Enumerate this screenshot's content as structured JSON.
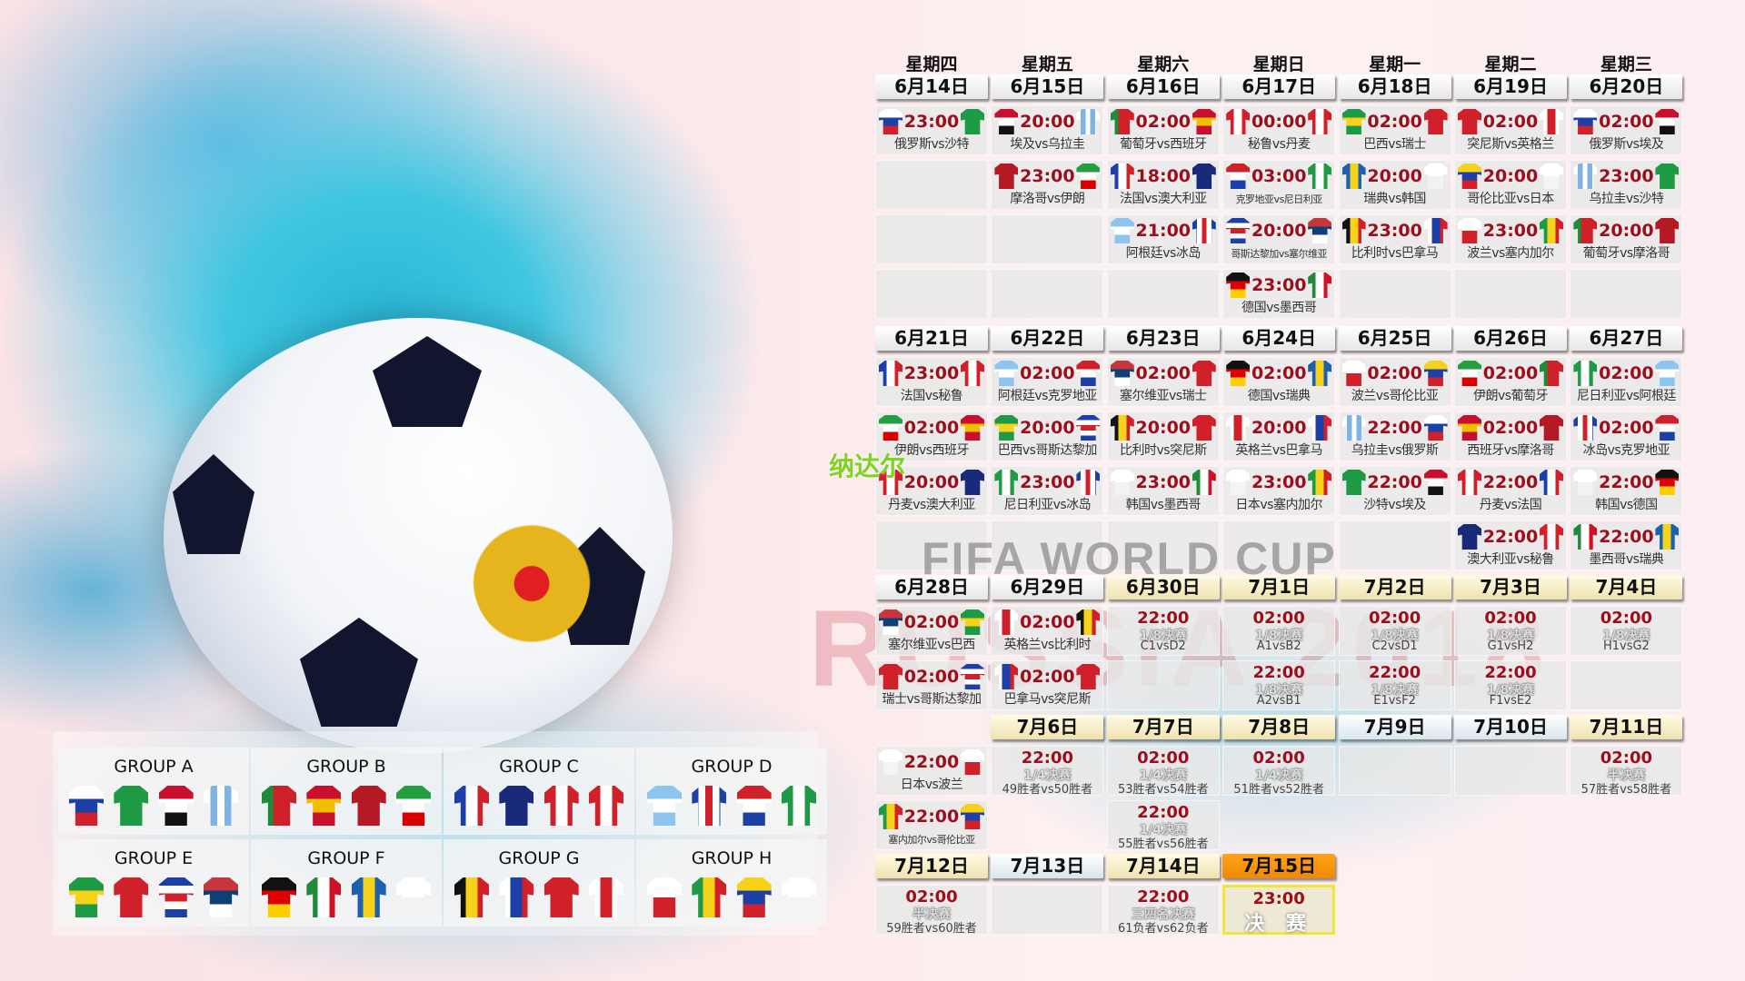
{
  "watermarks": {
    "fifa": "FIFA WORLD CUP",
    "russia": "RUSSIA 2018",
    "name": "纳达尔"
  },
  "weekdays": [
    "星期四",
    "星期五",
    "星期六",
    "星期日",
    "星期一",
    "星期二",
    "星期三"
  ],
  "jerseys": {
    "rus": {
      "dir": "h",
      "colors": [
        "#ffffff",
        "#1d3fa8",
        "#d0202a"
      ]
    },
    "ksa": {
      "dir": "h",
      "colors": [
        "#1f9a44",
        "#1f9a44"
      ]
    },
    "egy": {
      "dir": "h",
      "colors": [
        "#c8102e",
        "#ffffff",
        "#111111"
      ]
    },
    "uru": {
      "dir": "v",
      "colors": [
        "#ffffff",
        "#7fb3e3",
        "#ffffff",
        "#7fb3e3",
        "#ffffff"
      ]
    },
    "mar": {
      "dir": "h",
      "colors": [
        "#b51a24",
        "#b51a24"
      ]
    },
    "irn": {
      "dir": "h",
      "colors": [
        "#239f40",
        "#ffffff",
        "#da0000"
      ]
    },
    "por": {
      "dir": "v",
      "colors": [
        "#1f8a3a",
        "#d0202a",
        "#d0202a"
      ]
    },
    "esp": {
      "dir": "h",
      "colors": [
        "#c8102e",
        "#f1bf00",
        "#c8102e"
      ]
    },
    "fra": {
      "dir": "v",
      "colors": [
        "#1d3fa8",
        "#ffffff",
        "#d0202a"
      ]
    },
    "aus": {
      "dir": "h",
      "colors": [
        "#1a2a7a",
        "#1a2a7a"
      ]
    },
    "arg": {
      "dir": "h",
      "colors": [
        "#8ec5ee",
        "#ffffff",
        "#8ec5ee"
      ]
    },
    "isl": {
      "dir": "v",
      "colors": [
        "#1d3fa8",
        "#ffffff",
        "#d0202a",
        "#ffffff",
        "#1d3fa8"
      ]
    },
    "per": {
      "dir": "v",
      "colors": [
        "#d0202a",
        "#ffffff",
        "#d0202a"
      ]
    },
    "den": {
      "dir": "v",
      "colors": [
        "#d0202a",
        "#ffffff",
        "#d0202a"
      ]
    },
    "cro": {
      "dir": "h",
      "colors": [
        "#d0202a",
        "#ffffff",
        "#1d3fa8"
      ]
    },
    "nga": {
      "dir": "v",
      "colors": [
        "#1f9a44",
        "#ffffff",
        "#1f9a44"
      ]
    },
    "crc": {
      "dir": "h",
      "colors": [
        "#1d3fa8",
        "#ffffff",
        "#d0202a",
        "#ffffff",
        "#1d3fa8"
      ]
    },
    "srb": {
      "dir": "h",
      "colors": [
        "#c6363c",
        "#0c4076",
        "#ffffff"
      ]
    },
    "ger": {
      "dir": "h",
      "colors": [
        "#111111",
        "#dd0000",
        "#ffce00"
      ]
    },
    "mex": {
      "dir": "v",
      "colors": [
        "#1f8a3a",
        "#ffffff",
        "#ce1126"
      ]
    },
    "bra": {
      "dir": "h",
      "colors": [
        "#1f9a44",
        "#f7d21b",
        "#1f9a44"
      ]
    },
    "sui": {
      "dir": "h",
      "colors": [
        "#d0202a",
        "#d0202a"
      ]
    },
    "swe": {
      "dir": "v",
      "colors": [
        "#1d5fb0",
        "#f7d21b",
        "#1d5fb0"
      ]
    },
    "kor": {
      "dir": "h",
      "colors": [
        "#ffffff",
        "#f2f2f2"
      ]
    },
    "bel": {
      "dir": "v",
      "colors": [
        "#111111",
        "#f7d21b",
        "#d0202a"
      ]
    },
    "pan": {
      "dir": "v",
      "colors": [
        "#ffffff",
        "#1d3fa8",
        "#d0202a"
      ]
    },
    "tun": {
      "dir": "h",
      "colors": [
        "#d0202a",
        "#d0202a"
      ]
    },
    "eng": {
      "dir": "v",
      "colors": [
        "#ffffff",
        "#d0202a",
        "#ffffff"
      ]
    },
    "col": {
      "dir": "h",
      "colors": [
        "#f7d21b",
        "#1d3fa8",
        "#d0202a"
      ]
    },
    "jpn": {
      "dir": "h",
      "colors": [
        "#ffffff",
        "#f4f4f4"
      ]
    },
    "pol": {
      "dir": "h",
      "colors": [
        "#ffffff",
        "#d0202a"
      ]
    },
    "sen": {
      "dir": "v",
      "colors": [
        "#1f9a44",
        "#f7d21b",
        "#d0202a"
      ]
    }
  },
  "days": [
    {
      "date": "6月14日",
      "style": "group",
      "matches": [
        {
          "time": "23:00",
          "label": "俄罗斯vs沙特",
          "home": "rus",
          "away": "ksa"
        }
      ]
    },
    {
      "date": "6月15日",
      "style": "group",
      "matches": [
        {
          "time": "20:00",
          "label": "埃及vs乌拉圭",
          "home": "egy",
          "away": "uru"
        },
        {
          "time": "23:00",
          "label": "摩洛哥vs伊朗",
          "home": "mar",
          "away": "irn"
        }
      ]
    },
    {
      "date": "6月16日",
      "style": "group",
      "matches": [
        {
          "time": "02:00",
          "label": "葡萄牙vs西班牙",
          "home": "por",
          "away": "esp"
        },
        {
          "time": "18:00",
          "label": "法国vs澳大利亚",
          "home": "fra",
          "away": "aus"
        },
        {
          "time": "21:00",
          "label": "阿根廷vs冰岛",
          "home": "arg",
          "away": "isl"
        }
      ]
    },
    {
      "date": "6月17日",
      "style": "group",
      "matches": [
        {
          "time": "00:00",
          "label": "秘鲁vs丹麦",
          "home": "per",
          "away": "den"
        },
        {
          "time": "03:00",
          "label": "克罗地亚vs尼日利亚",
          "home": "cro",
          "away": "nga",
          "small": true
        },
        {
          "time": "20:00",
          "label": "哥斯达黎加vs塞尔维亚",
          "home": "crc",
          "away": "srb",
          "small": true
        },
        {
          "time": "23:00",
          "label": "德国vs墨西哥",
          "home": "ger",
          "away": "mex"
        }
      ]
    },
    {
      "date": "6月18日",
      "style": "group",
      "matches": [
        {
          "time": "02:00",
          "label": "巴西vs瑞士",
          "home": "bra",
          "away": "sui"
        },
        {
          "time": "20:00",
          "label": "瑞典vs韩国",
          "home": "swe",
          "away": "kor"
        },
        {
          "time": "23:00",
          "label": "比利时vs巴拿马",
          "home": "bel",
          "away": "pan"
        }
      ]
    },
    {
      "date": "6月19日",
      "style": "group",
      "matches": [
        {
          "time": "02:00",
          "label": "突尼斯vs英格兰",
          "home": "tun",
          "away": "eng"
        },
        {
          "time": "20:00",
          "label": "哥伦比亚vs日本",
          "home": "col",
          "away": "jpn"
        },
        {
          "time": "23:00",
          "label": "波兰vs塞内加尔",
          "home": "pol",
          "away": "sen"
        }
      ]
    },
    {
      "date": "6月20日",
      "style": "group",
      "matches": [
        {
          "time": "02:00",
          "label": "俄罗斯vs埃及",
          "home": "rus",
          "away": "egy"
        },
        {
          "time": "23:00",
          "label": "乌拉圭vs沙特",
          "home": "uru",
          "away": "ksa"
        },
        {
          "time": "20:00",
          "label": "葡萄牙vs摩洛哥",
          "home": "por",
          "away": "mar"
        }
      ]
    },
    {
      "date": "6月21日",
      "style": "group",
      "matches": [
        {
          "time": "23:00",
          "label": "法国vs秘鲁",
          "home": "fra",
          "away": "per"
        },
        {
          "time": "02:00",
          "label": "伊朗vs西班牙",
          "home": "irn",
          "away": "esp"
        },
        {
          "time": "20:00",
          "label": "丹麦vs澳大利亚",
          "home": "den",
          "away": "aus"
        }
      ]
    },
    {
      "date": "6月22日",
      "style": "group",
      "matches": [
        {
          "time": "02:00",
          "label": "阿根廷vs克罗地亚",
          "home": "arg",
          "away": "cro"
        },
        {
          "time": "20:00",
          "label": "巴西vs哥斯达黎加",
          "home": "bra",
          "away": "crc"
        },
        {
          "time": "23:00",
          "label": "尼日利亚vs冰岛",
          "home": "nga",
          "away": "isl"
        }
      ]
    },
    {
      "date": "6月23日",
      "style": "group",
      "matches": [
        {
          "time": "02:00",
          "label": "塞尔维亚vs瑞士",
          "home": "srb",
          "away": "sui"
        },
        {
          "time": "20:00",
          "label": "比利时vs突尼斯",
          "home": "bel",
          "away": "tun"
        },
        {
          "time": "23:00",
          "label": "韩国vs墨西哥",
          "home": "kor",
          "away": "mex"
        }
      ]
    },
    {
      "date": "6月24日",
      "style": "group",
      "matches": [
        {
          "time": "02:00",
          "label": "德国vs瑞典",
          "home": "ger",
          "away": "swe"
        },
        {
          "time": "20:00",
          "label": "英格兰vs巴拿马",
          "home": "eng",
          "away": "pan"
        },
        {
          "time": "23:00",
          "label": "日本vs塞内加尔",
          "home": "jpn",
          "away": "sen"
        }
      ]
    },
    {
      "date": "6月25日",
      "style": "group",
      "matches": [
        {
          "time": "02:00",
          "label": "波兰vs哥伦比亚",
          "home": "pol",
          "away": "col"
        },
        {
          "time": "22:00",
          "label": "乌拉圭vs俄罗斯",
          "home": "uru",
          "away": "rus"
        },
        {
          "time": "22:00",
          "label": "沙特vs埃及",
          "home": "ksa",
          "away": "egy"
        }
      ]
    },
    {
      "date": "6月26日",
      "style": "group",
      "matches": [
        {
          "time": "02:00",
          "label": "伊朗vs葡萄牙",
          "home": "irn",
          "away": "por"
        },
        {
          "time": "02:00",
          "label": "西班牙vs摩洛哥",
          "home": "esp",
          "away": "mar"
        },
        {
          "time": "22:00",
          "label": "丹麦vs法国",
          "home": "den",
          "away": "fra"
        },
        {
          "time": "22:00",
          "label": "澳大利亚vs秘鲁",
          "home": "aus",
          "away": "per"
        }
      ]
    },
    {
      "date": "6月27日",
      "style": "group",
      "matches": [
        {
          "time": "02:00",
          "label": "尼日利亚vs阿根廷",
          "home": "nga",
          "away": "arg"
        },
        {
          "time": "02:00",
          "label": "冰岛vs克罗地亚",
          "home": "isl",
          "away": "cro"
        },
        {
          "time": "22:00",
          "label": "韩国vs德国",
          "home": "kor",
          "away": "ger"
        },
        {
          "time": "22:00",
          "label": "墨西哥vs瑞典",
          "home": "mex",
          "away": "swe"
        }
      ]
    },
    {
      "date": "6月28日",
      "style": "group",
      "matches": [
        {
          "time": "02:00",
          "label": "塞尔维亚vs巴西",
          "home": "srb",
          "away": "bra"
        },
        {
          "time": "02:00",
          "label": "瑞士vs哥斯达黎加",
          "home": "sui",
          "away": "crc"
        }
      ]
    },
    {
      "date": "6月29日",
      "style": "group",
      "matches": [
        {
          "time": "02:00",
          "label": "英格兰vs比利时",
          "home": "eng",
          "away": "bel"
        },
        {
          "time": "02:00",
          "label": "巴拿马vs突尼斯",
          "home": "pan",
          "away": "tun"
        }
      ]
    },
    {
      "date": "6月30日",
      "style": "knockout",
      "matches": [
        {
          "time": "22:00",
          "stage": "1/8决赛",
          "pair": "C1vsD2"
        }
      ]
    },
    {
      "date": "7月1日",
      "style": "knockout",
      "matches": [
        {
          "time": "02:00",
          "stage": "1/8决赛",
          "pair": "A1vsB2"
        },
        {
          "time": "22:00",
          "stage": "1/8决赛",
          "pair": "A2vsB1"
        }
      ]
    },
    {
      "date": "7月2日",
      "style": "knockout",
      "matches": [
        {
          "time": "02:00",
          "stage": "1/8决赛",
          "pair": "C2vsD1"
        },
        {
          "time": "22:00",
          "stage": "1/8决赛",
          "pair": "E1vsF2"
        }
      ]
    },
    {
      "date": "7月3日",
      "style": "knockout",
      "matches": [
        {
          "time": "02:00",
          "stage": "1/8决赛",
          "pair": "G1vsH2"
        },
        {
          "time": "22:00",
          "stage": "1/8决赛",
          "pair": "F1vsE2"
        }
      ]
    },
    {
      "date": "7月4日",
      "style": "knockout",
      "matches": [
        {
          "time": "02:00",
          "stage": "1/8决赛",
          "pair": "H1vsG2"
        }
      ]
    },
    {
      "date": null,
      "style": "group",
      "matches": [
        {
          "time": "22:00",
          "label": "日本vs波兰",
          "home": "jpn",
          "away": "pol"
        },
        {
          "time": "22:00",
          "label": "塞内加尔vs哥伦比亚",
          "home": "sen",
          "away": "col",
          "small": true
        }
      ]
    },
    {
      "date": "7月6日",
      "style": "knockout",
      "matches": [
        {
          "time": "22:00",
          "stage": "1/4决赛",
          "pair": "49胜者vs50胜者"
        }
      ]
    },
    {
      "date": "7月7日",
      "style": "knockout",
      "matches": [
        {
          "time": "02:00",
          "stage": "1/4决赛",
          "pair": "53胜者vs54胜者"
        },
        {
          "time": "22:00",
          "stage": "1/4决赛",
          "pair": "55胜者vs56胜者"
        }
      ]
    },
    {
      "date": "7月8日",
      "style": "knockout",
      "matches": [
        {
          "time": "02:00",
          "stage": "1/4决赛",
          "pair": "51胜者vs52胜者"
        }
      ]
    },
    {
      "date": "7月9日",
      "style": "rest",
      "matches": []
    },
    {
      "date": "7月10日",
      "style": "rest",
      "matches": []
    },
    {
      "date": "7月11日",
      "style": "knockout",
      "matches": [
        {
          "time": "02:00",
          "stage": "半决赛",
          "pair": "57胜者vs58胜者"
        }
      ]
    },
    {
      "date": "7月12日",
      "style": "knockout",
      "matches": [
        {
          "time": "02:00",
          "stage": "半决赛",
          "pair": "59胜者vs60胜者"
        }
      ]
    },
    {
      "date": "7月13日",
      "style": "rest",
      "matches": []
    },
    {
      "date": "7月14日",
      "style": "knockout",
      "matches": [
        {
          "time": "22:00",
          "stage": "三四名决赛",
          "pair": "61负者vs62负者"
        }
      ]
    },
    {
      "date": "7月15日",
      "style": "final",
      "matches": [
        {
          "time": "23:00",
          "stage": "决 赛",
          "final": true
        }
      ]
    }
  ],
  "groups": [
    {
      "name": "GROUP A",
      "teams": [
        "rus",
        "ksa",
        "egy",
        "uru"
      ]
    },
    {
      "name": "GROUP B",
      "teams": [
        "por",
        "esp",
        "mar",
        "irn"
      ]
    },
    {
      "name": "GROUP C",
      "teams": [
        "fra",
        "aus",
        "per",
        "den"
      ]
    },
    {
      "name": "GROUP D",
      "teams": [
        "arg",
        "isl",
        "cro",
        "nga"
      ]
    },
    {
      "name": "GROUP E",
      "teams": [
        "bra",
        "sui",
        "crc",
        "srb"
      ]
    },
    {
      "name": "GROUP F",
      "teams": [
        "ger",
        "mex",
        "swe",
        "kor"
      ]
    },
    {
      "name": "GROUP G",
      "teams": [
        "bel",
        "pan",
        "tun",
        "eng"
      ]
    },
    {
      "name": "GROUP H",
      "teams": [
        "pol",
        "sen",
        "col",
        "jpn"
      ]
    }
  ]
}
